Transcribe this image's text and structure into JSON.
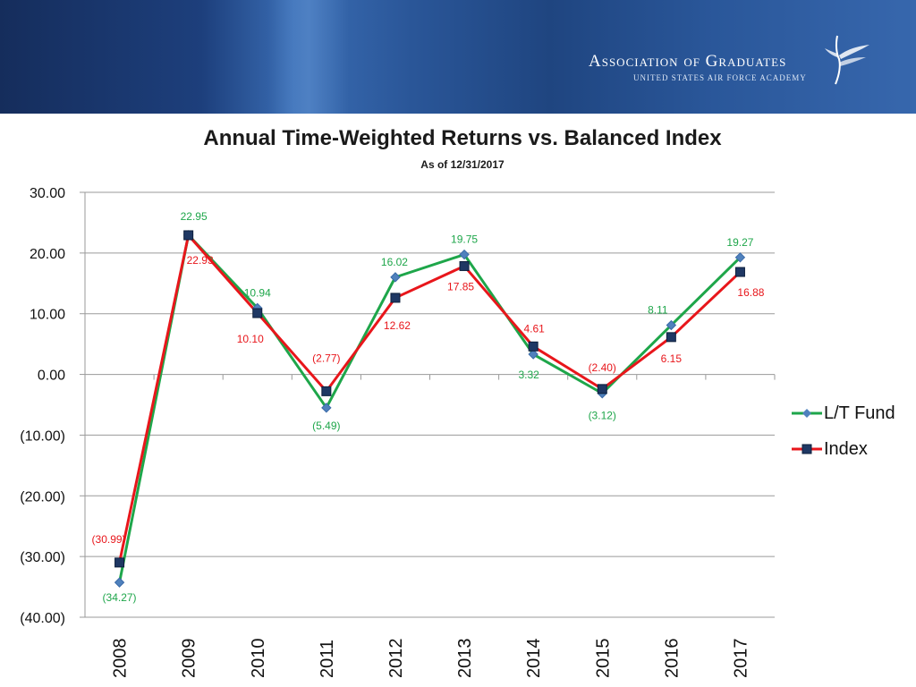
{
  "banner": {
    "org_name": "Association of Graduates",
    "org_subtitle": "UNITED STATES AIR FORCE ACADEMY"
  },
  "chart_data": {
    "type": "line",
    "title": "Annual Time-Weighted Returns vs. Balanced Index",
    "subtitle": "As of 12/31/2017",
    "categories": [
      "2008",
      "2009",
      "2010",
      "2011",
      "2012",
      "2013",
      "2014",
      "2015",
      "2016",
      "2017"
    ],
    "series": [
      {
        "name": "L/T Fund",
        "color": "#1ea64a",
        "marker": "diamond",
        "marker_color": "#4f81bd",
        "values": [
          -34.27,
          22.95,
          10.94,
          -5.49,
          16.02,
          19.75,
          3.32,
          -3.12,
          8.11,
          19.27
        ],
        "labels": [
          "(34.27)",
          "22.95",
          "10.94",
          "(5.49)",
          "16.02",
          "19.75",
          "3.32",
          "(3.12)",
          "8.11",
          "19.27"
        ]
      },
      {
        "name": "Index",
        "color": "#e8161b",
        "marker": "square",
        "marker_color": "#1f3864",
        "values": [
          -30.99,
          22.93,
          10.1,
          -2.77,
          12.62,
          17.85,
          4.61,
          -2.4,
          6.15,
          16.88
        ],
        "labels": [
          "(30.99)",
          "22.93",
          "10.10",
          "(2.77)",
          "12.62",
          "17.85",
          "4.61",
          "(2.40)",
          "6.15",
          "16.88"
        ]
      }
    ],
    "ylim": [
      -40,
      30
    ],
    "yticks": [
      30,
      20,
      10,
      0,
      -10,
      -20,
      -30,
      -40
    ],
    "ytick_labels": [
      "30.00",
      "20.00",
      "10.00",
      "0.00",
      "(10.00)",
      "(20.00)",
      "(30.00)",
      "(40.00)"
    ],
    "grid": true,
    "legend_position": "right"
  }
}
